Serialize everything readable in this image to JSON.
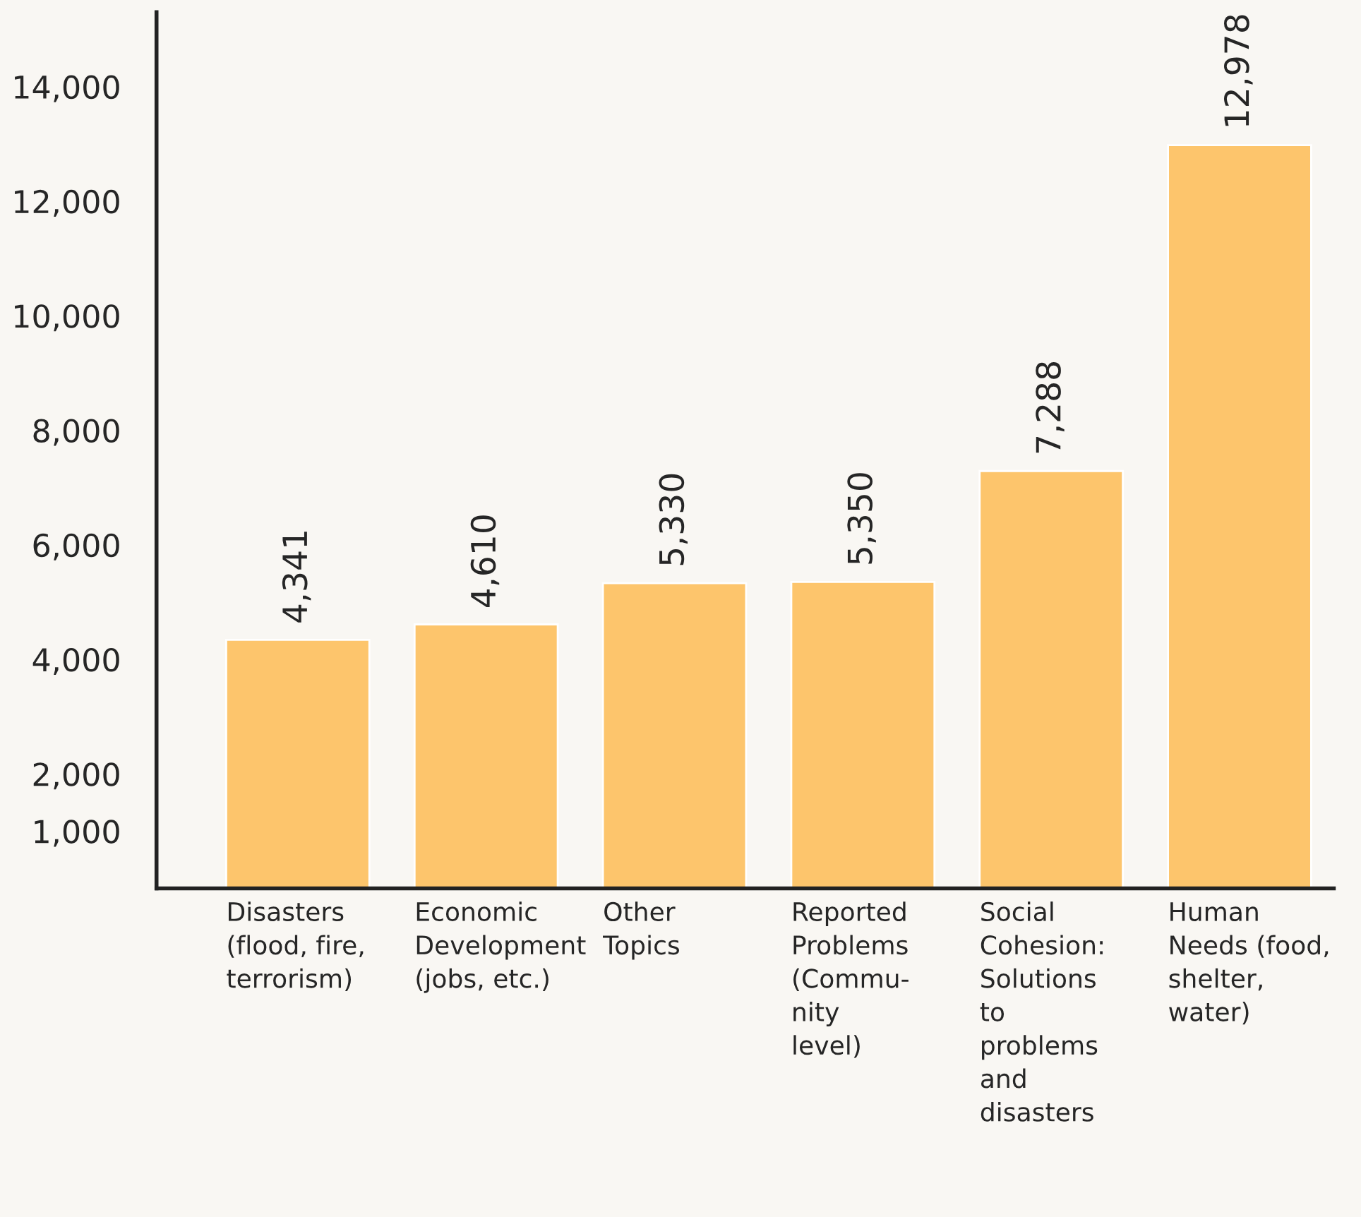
{
  "chart_data": {
    "type": "bar",
    "categories": [
      "Disasters\n(flood, fire,\nterrorism)",
      "Economic\nDevelopment\n(jobs, etc.)",
      "Other\nTopics",
      "Reported\nProblems\n(Commu-\nnity\nlevel)",
      "Social\nCohesion:\nSolutions\nto\nproblems\nand\ndisasters",
      "Human\nNeeds (food,\nshelter,\nwater)"
    ],
    "values": [
      4341,
      4610,
      5330,
      5350,
      7288,
      12978
    ],
    "value_labels": [
      "4,341",
      "4,610",
      "5,330",
      "5,350",
      "7,288",
      "12,978"
    ],
    "color": "#fdc56c",
    "ylim": [
      0,
      15300
    ],
    "yticks": [
      {
        "value": 1000,
        "label": "1,000"
      },
      {
        "value": 2000,
        "label": "2,000"
      },
      {
        "value": 4000,
        "label": "4,000"
      },
      {
        "value": 6000,
        "label": "6,000"
      },
      {
        "value": 8000,
        "label": "8,000"
      },
      {
        "value": 10000,
        "label": "10,000"
      },
      {
        "value": 12000,
        "label": "12,000"
      },
      {
        "value": 14000,
        "label": "14,000"
      }
    ],
    "grid": false,
    "legend": false
  }
}
